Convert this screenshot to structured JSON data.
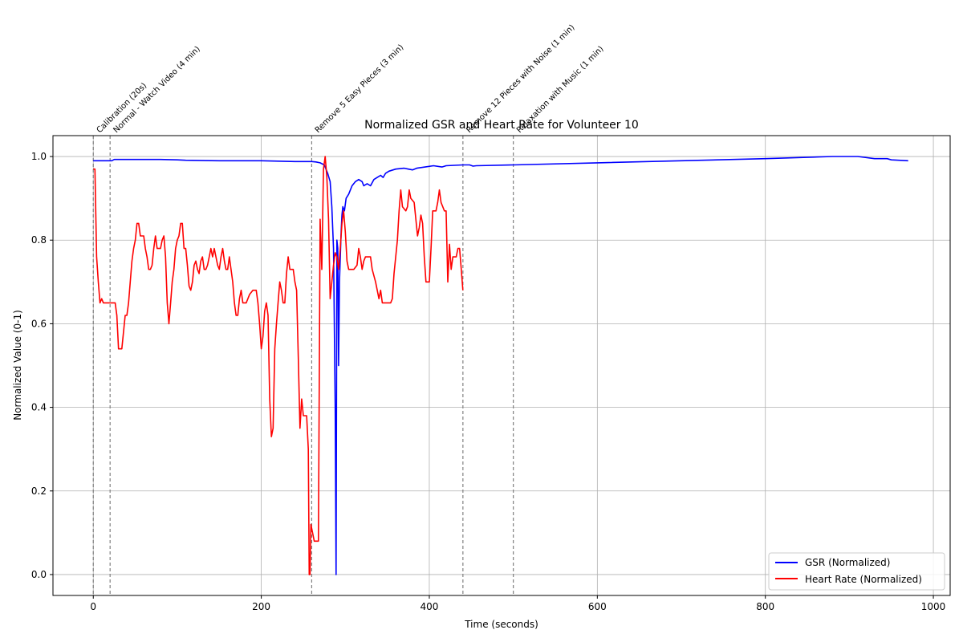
{
  "chart_data": {
    "type": "line",
    "title": "Normalized GSR and Heart Rate for Volunteer 10",
    "xlabel": "Time (seconds)",
    "ylabel": "Normalized Value (0-1)",
    "xlim": [
      -48,
      1020
    ],
    "ylim": [
      -0.05,
      1.05
    ],
    "xticks": [
      0,
      200,
      400,
      600,
      800,
      1000
    ],
    "yticks": [
      0.0,
      0.2,
      0.4,
      0.6,
      0.8,
      1.0
    ],
    "xtick_labels": [
      "0",
      "200",
      "400",
      "600",
      "800",
      "1000"
    ],
    "ytick_labels": [
      "0.0",
      "0.2",
      "0.4",
      "0.6",
      "0.8",
      "1.0"
    ],
    "grid": true,
    "legend_position": "lower-right",
    "annotations": [
      {
        "x": 0,
        "label": "Calibration (20s)"
      },
      {
        "x": 20,
        "label": "Normal - Watch Video (4 min)"
      },
      {
        "x": 260,
        "label": "Remove 5 Easy Pieces (3 min)"
      },
      {
        "x": 440,
        "label": "Remove 12 Pieces with Noise (1 min)"
      },
      {
        "x": 500,
        "label": "Relaxation with Music (1 min)"
      }
    ],
    "series": [
      {
        "name": "GSR (Normalized)",
        "color": "#0000ff",
        "points": [
          [
            0,
            0.99
          ],
          [
            10,
            0.99
          ],
          [
            20,
            0.99
          ],
          [
            22,
            0.99
          ],
          [
            25,
            0.993
          ],
          [
            50,
            0.993
          ],
          [
            80,
            0.993
          ],
          [
            100,
            0.992
          ],
          [
            110,
            0.991
          ],
          [
            150,
            0.99
          ],
          [
            200,
            0.99
          ],
          [
            220,
            0.989
          ],
          [
            240,
            0.988
          ],
          [
            260,
            0.988
          ],
          [
            265,
            0.987
          ],
          [
            270,
            0.985
          ],
          [
            275,
            0.98
          ],
          [
            279,
            0.96
          ],
          [
            282,
            0.94
          ],
          [
            284,
            0.88
          ],
          [
            286,
            0.78
          ],
          [
            288,
            0.4
          ],
          [
            289,
            0.0
          ],
          [
            290,
            0.8
          ],
          [
            291,
            0.78
          ],
          [
            292,
            0.5
          ],
          [
            293,
            0.7
          ],
          [
            295,
            0.82
          ],
          [
            296,
            0.86
          ],
          [
            297,
            0.88
          ],
          [
            299,
            0.87
          ],
          [
            301,
            0.9
          ],
          [
            304,
            0.91
          ],
          [
            306,
            0.92
          ],
          [
            308,
            0.93
          ],
          [
            312,
            0.94
          ],
          [
            316,
            0.945
          ],
          [
            320,
            0.94
          ],
          [
            322,
            0.93
          ],
          [
            326,
            0.935
          ],
          [
            330,
            0.93
          ],
          [
            334,
            0.945
          ],
          [
            338,
            0.95
          ],
          [
            342,
            0.955
          ],
          [
            345,
            0.95
          ],
          [
            348,
            0.96
          ],
          [
            352,
            0.965
          ],
          [
            360,
            0.97
          ],
          [
            370,
            0.972
          ],
          [
            375,
            0.97
          ],
          [
            380,
            0.968
          ],
          [
            385,
            0.972
          ],
          [
            395,
            0.975
          ],
          [
            405,
            0.978
          ],
          [
            415,
            0.975
          ],
          [
            420,
            0.978
          ],
          [
            440,
            0.98
          ],
          [
            448,
            0.98
          ],
          [
            452,
            0.977
          ],
          [
            456,
            0.978
          ],
          [
            500,
            0.98
          ],
          [
            600,
            0.985
          ],
          [
            700,
            0.99
          ],
          [
            800,
            0.995
          ],
          [
            880,
            1.0
          ],
          [
            910,
            1.0
          ],
          [
            930,
            0.995
          ],
          [
            945,
            0.995
          ],
          [
            950,
            0.992
          ],
          [
            970,
            0.99
          ]
        ]
      },
      {
        "name": "Heart Rate (Normalized)",
        "color": "#ff0000",
        "points": [
          [
            0,
            0.97
          ],
          [
            2,
            0.97
          ],
          [
            4,
            0.76
          ],
          [
            6,
            0.7
          ],
          [
            8,
            0.65
          ],
          [
            10,
            0.66
          ],
          [
            12,
            0.65
          ],
          [
            18,
            0.65
          ],
          [
            22,
            0.65
          ],
          [
            26,
            0.65
          ],
          [
            28,
            0.62
          ],
          [
            30,
            0.54
          ],
          [
            32,
            0.54
          ],
          [
            34,
            0.54
          ],
          [
            36,
            0.58
          ],
          [
            38,
            0.62
          ],
          [
            40,
            0.62
          ],
          [
            42,
            0.65
          ],
          [
            44,
            0.7
          ],
          [
            46,
            0.75
          ],
          [
            48,
            0.78
          ],
          [
            50,
            0.8
          ],
          [
            52,
            0.84
          ],
          [
            54,
            0.84
          ],
          [
            56,
            0.81
          ],
          [
            58,
            0.81
          ],
          [
            60,
            0.81
          ],
          [
            62,
            0.78
          ],
          [
            64,
            0.76
          ],
          [
            66,
            0.73
          ],
          [
            68,
            0.73
          ],
          [
            70,
            0.74
          ],
          [
            72,
            0.78
          ],
          [
            74,
            0.81
          ],
          [
            76,
            0.78
          ],
          [
            80,
            0.78
          ],
          [
            82,
            0.8
          ],
          [
            84,
            0.81
          ],
          [
            86,
            0.76
          ],
          [
            88,
            0.65
          ],
          [
            90,
            0.6
          ],
          [
            92,
            0.65
          ],
          [
            94,
            0.7
          ],
          [
            96,
            0.73
          ],
          [
            98,
            0.78
          ],
          [
            100,
            0.8
          ],
          [
            102,
            0.81
          ],
          [
            104,
            0.84
          ],
          [
            106,
            0.84
          ],
          [
            108,
            0.78
          ],
          [
            110,
            0.78
          ],
          [
            112,
            0.74
          ],
          [
            114,
            0.69
          ],
          [
            116,
            0.68
          ],
          [
            118,
            0.7
          ],
          [
            120,
            0.74
          ],
          [
            122,
            0.75
          ],
          [
            124,
            0.73
          ],
          [
            126,
            0.72
          ],
          [
            128,
            0.75
          ],
          [
            130,
            0.76
          ],
          [
            132,
            0.73
          ],
          [
            134,
            0.73
          ],
          [
            136,
            0.74
          ],
          [
            138,
            0.76
          ],
          [
            140,
            0.78
          ],
          [
            142,
            0.76
          ],
          [
            144,
            0.78
          ],
          [
            146,
            0.76
          ],
          [
            148,
            0.74
          ],
          [
            150,
            0.73
          ],
          [
            152,
            0.76
          ],
          [
            154,
            0.78
          ],
          [
            156,
            0.75
          ],
          [
            158,
            0.73
          ],
          [
            160,
            0.73
          ],
          [
            162,
            0.76
          ],
          [
            164,
            0.73
          ],
          [
            166,
            0.7
          ],
          [
            168,
            0.65
          ],
          [
            170,
            0.62
          ],
          [
            172,
            0.62
          ],
          [
            174,
            0.66
          ],
          [
            176,
            0.68
          ],
          [
            178,
            0.65
          ],
          [
            182,
            0.65
          ],
          [
            186,
            0.67
          ],
          [
            190,
            0.68
          ],
          [
            194,
            0.68
          ],
          [
            196,
            0.65
          ],
          [
            198,
            0.6
          ],
          [
            200,
            0.54
          ],
          [
            202,
            0.57
          ],
          [
            204,
            0.63
          ],
          [
            206,
            0.65
          ],
          [
            208,
            0.62
          ],
          [
            210,
            0.42
          ],
          [
            212,
            0.33
          ],
          [
            214,
            0.35
          ],
          [
            216,
            0.54
          ],
          [
            218,
            0.6
          ],
          [
            220,
            0.65
          ],
          [
            222,
            0.7
          ],
          [
            224,
            0.68
          ],
          [
            226,
            0.65
          ],
          [
            228,
            0.65
          ],
          [
            230,
            0.72
          ],
          [
            232,
            0.76
          ],
          [
            234,
            0.73
          ],
          [
            238,
            0.73
          ],
          [
            240,
            0.7
          ],
          [
            242,
            0.68
          ],
          [
            244,
            0.52
          ],
          [
            246,
            0.35
          ],
          [
            248,
            0.42
          ],
          [
            250,
            0.38
          ],
          [
            254,
            0.38
          ],
          [
            256,
            0.3
          ],
          [
            257,
            0.0
          ],
          [
            258,
            0.0
          ],
          [
            259,
            0.12
          ],
          [
            261,
            0.1
          ],
          [
            263,
            0.08
          ],
          [
            266,
            0.08
          ],
          [
            268,
            0.08
          ],
          [
            270,
            0.85
          ],
          [
            272,
            0.73
          ],
          [
            274,
            0.97
          ],
          [
            276,
            1.0
          ],
          [
            278,
            0.95
          ],
          [
            280,
            0.85
          ],
          [
            282,
            0.66
          ],
          [
            284,
            0.7
          ],
          [
            286,
            0.74
          ],
          [
            288,
            0.77
          ],
          [
            290,
            0.76
          ],
          [
            292,
            0.73
          ],
          [
            294,
            0.78
          ],
          [
            296,
            0.84
          ],
          [
            298,
            0.87
          ],
          [
            300,
            0.82
          ],
          [
            302,
            0.75
          ],
          [
            304,
            0.73
          ],
          [
            310,
            0.73
          ],
          [
            314,
            0.74
          ],
          [
            316,
            0.78
          ],
          [
            318,
            0.76
          ],
          [
            320,
            0.73
          ],
          [
            322,
            0.75
          ],
          [
            324,
            0.76
          ],
          [
            330,
            0.76
          ],
          [
            332,
            0.73
          ],
          [
            336,
            0.7
          ],
          [
            340,
            0.66
          ],
          [
            342,
            0.68
          ],
          [
            344,
            0.65
          ],
          [
            348,
            0.65
          ],
          [
            354,
            0.65
          ],
          [
            356,
            0.66
          ],
          [
            358,
            0.72
          ],
          [
            360,
            0.76
          ],
          [
            362,
            0.8
          ],
          [
            364,
            0.87
          ],
          [
            366,
            0.92
          ],
          [
            368,
            0.88
          ],
          [
            372,
            0.87
          ],
          [
            374,
            0.88
          ],
          [
            376,
            0.92
          ],
          [
            378,
            0.9
          ],
          [
            382,
            0.89
          ],
          [
            384,
            0.85
          ],
          [
            386,
            0.81
          ],
          [
            388,
            0.83
          ],
          [
            390,
            0.86
          ],
          [
            392,
            0.84
          ],
          [
            394,
            0.76
          ],
          [
            396,
            0.7
          ],
          [
            400,
            0.7
          ],
          [
            402,
            0.78
          ],
          [
            404,
            0.87
          ],
          [
            408,
            0.87
          ],
          [
            410,
            0.89
          ],
          [
            412,
            0.92
          ],
          [
            414,
            0.89
          ],
          [
            418,
            0.87
          ],
          [
            420,
            0.87
          ],
          [
            422,
            0.7
          ],
          [
            424,
            0.79
          ],
          [
            426,
            0.73
          ],
          [
            428,
            0.76
          ],
          [
            432,
            0.76
          ],
          [
            434,
            0.78
          ],
          [
            436,
            0.78
          ],
          [
            438,
            0.73
          ],
          [
            440,
            0.68
          ]
        ]
      }
    ]
  }
}
